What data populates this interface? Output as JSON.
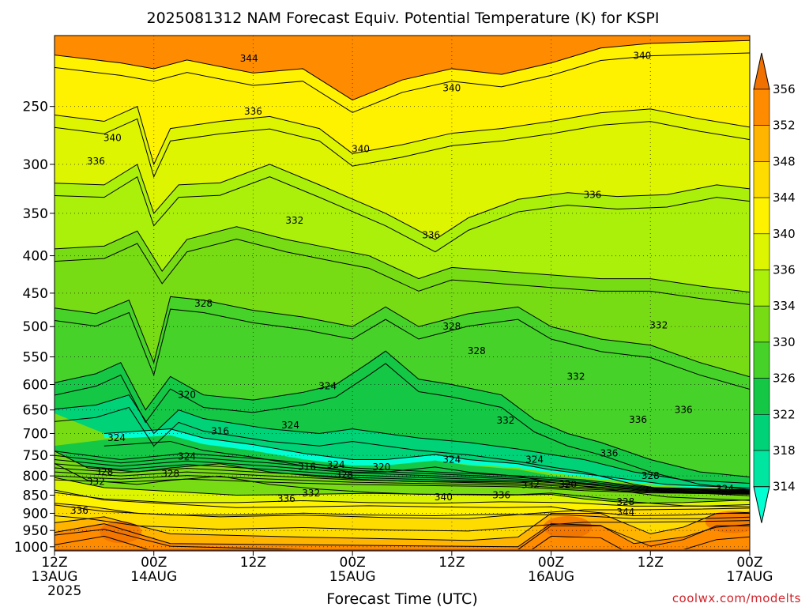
{
  "chart_data": {
    "type": "heatmap",
    "title": "2025081312 NAM Forecast Equiv. Potential Temperature (K) for KSPI",
    "xlabel": "Forecast Time (UTC)",
    "ylabel": "",
    "x_ticks": [
      {
        "hour": 0,
        "line1": "12Z",
        "line2": "13AUG",
        "line3": "2025"
      },
      {
        "hour": 12,
        "line1": "00Z",
        "line2": "14AUG",
        "line3": ""
      },
      {
        "hour": 24,
        "line1": "12Z",
        "line2": "",
        "line3": ""
      },
      {
        "hour": 36,
        "line1": "00Z",
        "line2": "15AUG",
        "line3": ""
      },
      {
        "hour": 48,
        "line1": "12Z",
        "line2": "",
        "line3": ""
      },
      {
        "hour": 60,
        "line1": "00Z",
        "line2": "16AUG",
        "line3": ""
      },
      {
        "hour": 72,
        "line1": "12Z",
        "line2": "",
        "line3": ""
      },
      {
        "hour": 84,
        "line1": "00Z",
        "line2": "17AUG",
        "line3": ""
      }
    ],
    "xlim": [
      0,
      84
    ],
    "y_ticks": [
      250,
      300,
      350,
      400,
      450,
      500,
      550,
      600,
      650,
      700,
      750,
      800,
      850,
      900,
      950,
      1000
    ],
    "ylim": [
      1013,
      200
    ],
    "y_scale": "log",
    "grid": true,
    "colorbar": {
      "levels": [
        314,
        318,
        322,
        326,
        330,
        334,
        336,
        340,
        344,
        348,
        352,
        356
      ],
      "placement": "right"
    },
    "contour_labels": [
      {
        "value": "344",
        "hour": 23.5,
        "p": 215
      },
      {
        "value": "340",
        "hour": 71,
        "p": 213
      },
      {
        "value": "340",
        "hour": 48,
        "p": 236
      },
      {
        "value": "336",
        "hour": 24,
        "p": 254
      },
      {
        "value": "340",
        "hour": 7,
        "p": 276
      },
      {
        "value": "340",
        "hour": 37,
        "p": 286
      },
      {
        "value": "336",
        "hour": 5,
        "p": 297
      },
      {
        "value": "336",
        "hour": 65,
        "p": 330
      },
      {
        "value": "332",
        "hour": 29,
        "p": 358
      },
      {
        "value": "336",
        "hour": 45.5,
        "p": 375
      },
      {
        "value": "328",
        "hour": 18,
        "p": 465
      },
      {
        "value": "328",
        "hour": 48,
        "p": 500
      },
      {
        "value": "332",
        "hour": 73,
        "p": 498
      },
      {
        "value": "328",
        "hour": 51,
        "p": 540
      },
      {
        "value": "332",
        "hour": 63,
        "p": 585
      },
      {
        "value": "324",
        "hour": 33,
        "p": 603
      },
      {
        "value": "320",
        "hour": 16,
        "p": 620
      },
      {
        "value": "336",
        "hour": 76,
        "p": 650
      },
      {
        "value": "336",
        "hour": 70.5,
        "p": 670
      },
      {
        "value": "332",
        "hour": 54.5,
        "p": 672
      },
      {
        "value": "324",
        "hour": 28.5,
        "p": 682
      },
      {
        "value": "316",
        "hour": 20,
        "p": 695
      },
      {
        "value": "324",
        "hour": 7.5,
        "p": 710
      },
      {
        "value": "324",
        "hour": 16,
        "p": 752
      },
      {
        "value": "336",
        "hour": 67,
        "p": 745
      },
      {
        "value": "324",
        "hour": 48,
        "p": 760
      },
      {
        "value": "324",
        "hour": 58,
        "p": 760
      },
      {
        "value": "324",
        "hour": 34,
        "p": 772
      },
      {
        "value": "316",
        "hour": 30.5,
        "p": 777
      },
      {
        "value": "320",
        "hour": 39.5,
        "p": 778
      },
      {
        "value": "328",
        "hour": 6,
        "p": 790
      },
      {
        "value": "328",
        "hour": 14,
        "p": 795
      },
      {
        "value": "328",
        "hour": 35,
        "p": 798
      },
      {
        "value": "328",
        "hour": 72,
        "p": 800
      },
      {
        "value": "332",
        "hour": 5,
        "p": 815
      },
      {
        "value": "332",
        "hour": 57.5,
        "p": 823
      },
      {
        "value": "320",
        "hour": 62,
        "p": 822
      },
      {
        "value": "324",
        "hour": 81,
        "p": 833
      },
      {
        "value": "332",
        "hour": 31,
        "p": 845
      },
      {
        "value": "336",
        "hour": 28,
        "p": 860
      },
      {
        "value": "340",
        "hour": 47,
        "p": 855
      },
      {
        "value": "336",
        "hour": 54,
        "p": 850
      },
      {
        "value": "328",
        "hour": 69,
        "p": 868
      },
      {
        "value": "344",
        "hour": 69,
        "p": 897
      },
      {
        "value": "336",
        "hour": 3,
        "p": 892
      }
    ]
  },
  "credit": "coolwx.com/modelts",
  "colors": {
    "ground": "#a0522d",
    "credit": "#d2222a",
    "scale": [
      "#00ffd2",
      "#00e6a0",
      "#00d278",
      "#14c846",
      "#46d228",
      "#78dc14",
      "#aaf00a",
      "#ddf500",
      "#fff200",
      "#ffdc00",
      "#ffb400",
      "#ff8c00",
      "#f07000"
    ]
  }
}
